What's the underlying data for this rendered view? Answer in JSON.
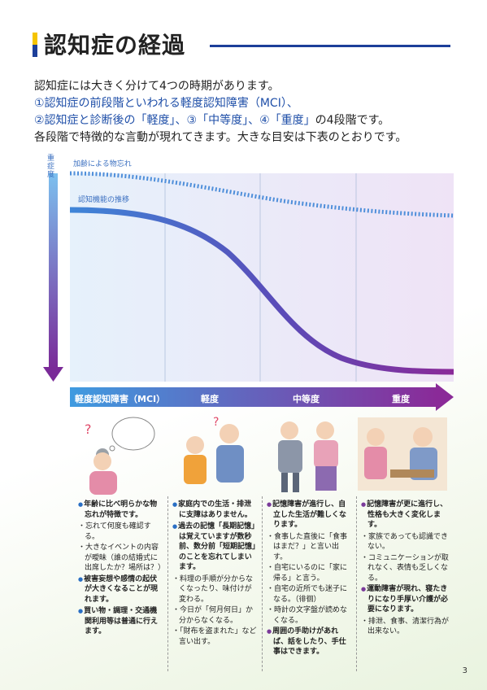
{
  "title": "認知症の経過",
  "intro": {
    "line1": "認知症には大きく分けて4つの時期があります。",
    "line2": "①認知症の前段階といわれる軽度認知障害（MCI）、",
    "line3_a": "②認知症と診断後の「軽度」、③「中等度」、④「重度」",
    "line3_b": "の4段階です。",
    "line4": "各段階で特徴的な言動が現れてきます。大きな目安は下表のとおりです。"
  },
  "chart": {
    "severity_label": "重症度",
    "aging_label": "加齢による物忘れ",
    "cognition_label": "認知機能の推移",
    "stages": [
      "軽度認知障害（MCI）",
      "軽度",
      "中等度",
      "重度"
    ]
  },
  "columns": [
    {
      "items": [
        {
          "type": "bullet",
          "text": "年齢に比べ明らかな物忘れが特徴です。"
        },
        {
          "type": "sub",
          "text": "忘れて何度も確認する。"
        },
        {
          "type": "sub",
          "text": "大きなイベントの内容が曖昧（誰の結婚式に出席したか？場所は？）"
        },
        {
          "type": "bullet",
          "text": "被害妄想や感情の起伏が大きくなることが現れます。"
        },
        {
          "type": "bullet",
          "text": "買い物・調理・交通機関利用等は普通に行えます。"
        }
      ]
    },
    {
      "items": [
        {
          "type": "bullet",
          "text": "家庭内での生活・排泄に支障はありません。"
        },
        {
          "type": "bullet",
          "text": "過去の記憶「長期記憶」は覚えていますが数秒前、数分前「短期記憶」のことを忘れてしまいます。"
        },
        {
          "type": "sub",
          "text": "料理の手順が分からなくなったり、味付けが変わる。"
        },
        {
          "type": "sub",
          "text": "今日が「何月何日」か分からなくなる。"
        },
        {
          "type": "sub",
          "text": "「財布を盗まれた」など言い出す。"
        }
      ]
    },
    {
      "items": [
        {
          "type": "bullet",
          "text": "記憶障害が進行し、自立した生活が難しくなります。"
        },
        {
          "type": "sub",
          "text": "食事した直後に「食事はまだ？」と言い出す。"
        },
        {
          "type": "sub",
          "text": "自宅にいるのに「家に帰る」と言う。"
        },
        {
          "type": "sub",
          "text": "自宅の近所でも迷子になる。（徘徊）"
        },
        {
          "type": "sub",
          "text": "時計の文字盤が読めなくなる。"
        },
        {
          "type": "bullet",
          "text": "周囲の手助けがあれば、話をしたり、手仕事はできます。"
        }
      ]
    },
    {
      "items": [
        {
          "type": "bullet",
          "text": "記憶障害が更に進行し、性格も大きく変化します。"
        },
        {
          "type": "sub",
          "text": "家族であっても認識できない。"
        },
        {
          "type": "sub",
          "text": "コミュニケーションが取れなく、表情も乏しくなる。"
        },
        {
          "type": "bullet",
          "text": "運動障害が現れ、寝たきりになり手厚い介護が必要になります。"
        },
        {
          "type": "sub",
          "text": "排泄、食事、清潔行為が出来ない。"
        }
      ]
    }
  ],
  "page_number": "3",
  "colors": {
    "blue": "#2a6fc4",
    "purple": "#7a3a9a",
    "navy": "#1c3f9a",
    "yellow": "#f5c400"
  }
}
